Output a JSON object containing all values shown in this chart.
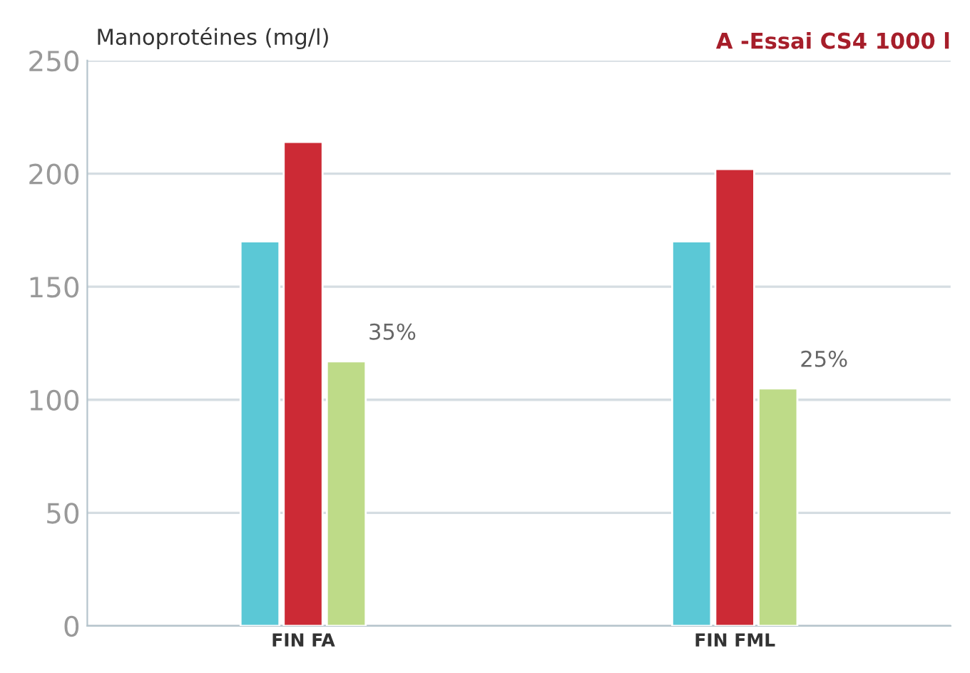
{
  "chart_data": {
    "type": "bar",
    "title": "A -Essai CS4 1000 l",
    "ylabel": "Manoprotéines (mg/l)",
    "categories": [
      "FIN FA",
      "FIN FML"
    ],
    "series": [
      {
        "color": "#5bc8d6",
        "values": [
          170,
          170
        ]
      },
      {
        "color": "#cc2a35",
        "values": [
          214,
          202
        ]
      },
      {
        "color": "#bedb88",
        "values": [
          117,
          105
        ]
      }
    ],
    "ylim": [
      0,
      250
    ],
    "yticks": [
      0,
      50,
      100,
      150,
      200,
      250
    ],
    "grid": "y",
    "legend": false,
    "annotations": [
      "35%",
      "25%"
    ]
  }
}
